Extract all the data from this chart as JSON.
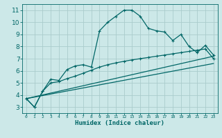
{
  "title": "",
  "xlabel": "Humidex (Indice chaleur)",
  "bg_color": "#cce8e8",
  "grid_color": "#aacccc",
  "line_color": "#006666",
  "xlim": [
    -0.5,
    23.5
  ],
  "ylim": [
    2.5,
    11.5
  ],
  "yticks": [
    3,
    4,
    5,
    6,
    7,
    8,
    9,
    10,
    11
  ],
  "xticks": [
    0,
    1,
    2,
    3,
    4,
    5,
    6,
    7,
    8,
    9,
    10,
    11,
    12,
    13,
    14,
    15,
    16,
    17,
    18,
    19,
    20,
    21,
    22,
    23
  ],
  "curve1_x": [
    0,
    1,
    2,
    3,
    4,
    5,
    6,
    7,
    8,
    9,
    10,
    11,
    12,
    13,
    14,
    15,
    16,
    17,
    18,
    19,
    20,
    21,
    22,
    23
  ],
  "curve1_y": [
    3.7,
    3.0,
    4.3,
    5.3,
    5.2,
    6.1,
    6.4,
    6.5,
    6.3,
    9.3,
    10.0,
    10.5,
    11.0,
    11.0,
    10.5,
    9.5,
    9.3,
    9.2,
    8.5,
    9.0,
    8.0,
    7.5,
    8.1,
    7.3
  ],
  "curve2_x": [
    0,
    1,
    2,
    3,
    4,
    5,
    6,
    7,
    8,
    9,
    10,
    11,
    12,
    13,
    14,
    15,
    16,
    17,
    18,
    19,
    20,
    21,
    22,
    23
  ],
  "curve2_y": [
    3.7,
    3.0,
    4.3,
    5.0,
    5.1,
    5.35,
    5.55,
    5.8,
    6.05,
    6.3,
    6.5,
    6.65,
    6.78,
    6.9,
    7.0,
    7.1,
    7.2,
    7.3,
    7.4,
    7.5,
    7.6,
    7.7,
    7.8,
    7.0
  ],
  "curve3_x": [
    0,
    23
  ],
  "curve3_y": [
    3.7,
    7.2
  ],
  "curve4_x": [
    0,
    23
  ],
  "curve4_y": [
    3.7,
    6.6
  ],
  "linewidth": 0.9,
  "markersize": 3.5
}
